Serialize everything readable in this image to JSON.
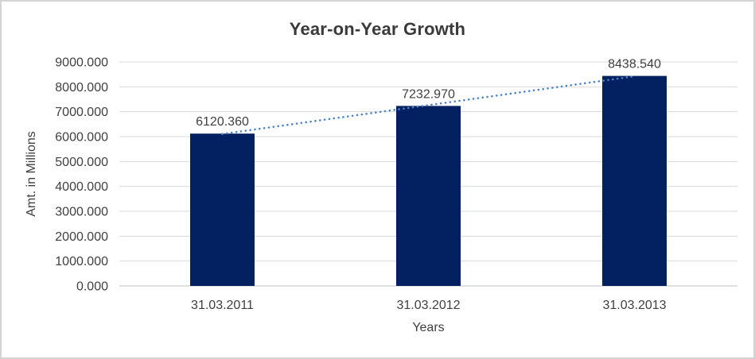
{
  "window": {
    "background": "#ffffff",
    "border_color": "#d3d3d3"
  },
  "chart_data": {
    "type": "bar",
    "title": "Year-on-Year Growth",
    "xlabel": "Years",
    "ylabel": "Amt. in Millions",
    "categories": [
      "31.03.2011",
      "31.03.2012",
      "31.03.2013"
    ],
    "values": [
      6120.36,
      7232.97,
      8438.54
    ],
    "data_labels": [
      "6120.360",
      "7232.970",
      "8438.540"
    ],
    "ylim": [
      0,
      9000
    ],
    "ytick_step": 1000,
    "ytick_labels": [
      "0.000",
      "1000.000",
      "2000.000",
      "3000.000",
      "4000.000",
      "5000.000",
      "6000.000",
      "7000.000",
      "8000.000",
      "9000.000"
    ],
    "grid": true,
    "legend": "none",
    "trendline": {
      "type": "linear",
      "style": "dotted"
    },
    "colors": {
      "bar": "#032160",
      "trendline": "#4e84c8",
      "gridline": "#d9d9d9",
      "axis_line": "#bfbfbf",
      "label_text": "#404040",
      "title_text": "#3a3a3a"
    }
  }
}
